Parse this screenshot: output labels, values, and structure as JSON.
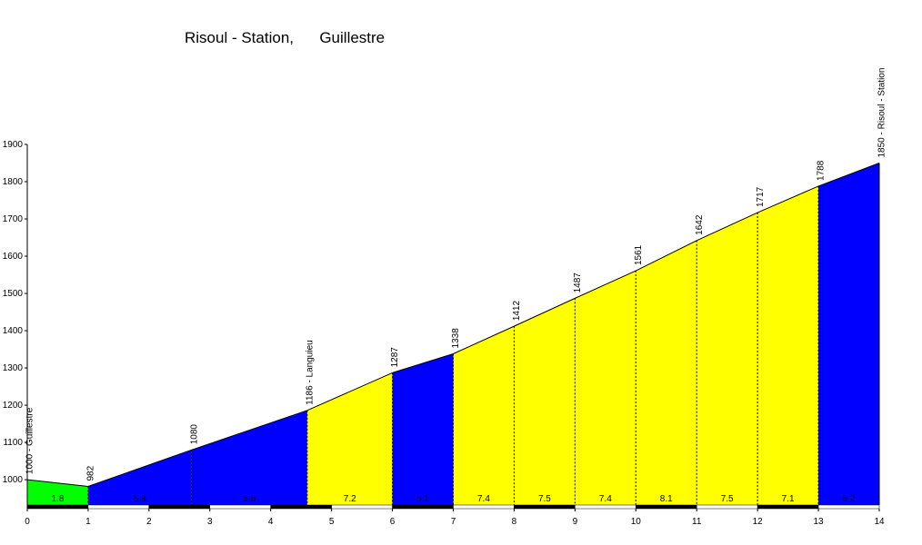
{
  "chart_data": {
    "type": "profile",
    "title": "Risoul - Station,      Guillestre",
    "x": [
      0,
      1,
      2.7,
      4.6,
      6,
      7,
      8,
      9,
      10,
      11,
      12,
      13,
      14
    ],
    "values": [
      1000,
      982,
      1080,
      1186,
      1287,
      1338,
      1412,
      1487,
      1561,
      1642,
      1717,
      1788,
      1850
    ],
    "value_labels": [
      "1000 - Guillestre",
      "982",
      "1080",
      "1186 - Languieu",
      "1287",
      "1338",
      "1412",
      "1487",
      "1561",
      "1642",
      "1717",
      "1788",
      "1850 - Risoul - Station"
    ],
    "gradients": [
      1.8,
      5.8,
      5.6,
      7.2,
      5.1,
      7.4,
      7.5,
      7.4,
      8.1,
      7.5,
      7.1,
      6.2
    ],
    "segment_colors": [
      "#00ff00",
      "#0000ff",
      "#0000ff",
      "#ffff00",
      "#0000ff",
      "#ffff00",
      "#ffff00",
      "#ffff00",
      "#ffff00",
      "#ffff00",
      "#ffff00",
      "#0000ff"
    ],
    "xlim": [
      0,
      14
    ],
    "ylim": [
      932,
      1900
    ],
    "xticks": [
      0,
      1,
      2,
      3,
      4,
      5,
      6,
      7,
      8,
      9,
      10,
      11,
      12,
      13,
      14
    ],
    "yticks": [
      1000,
      1100,
      1200,
      1300,
      1400,
      1500,
      1600,
      1700,
      1800,
      1900
    ]
  }
}
